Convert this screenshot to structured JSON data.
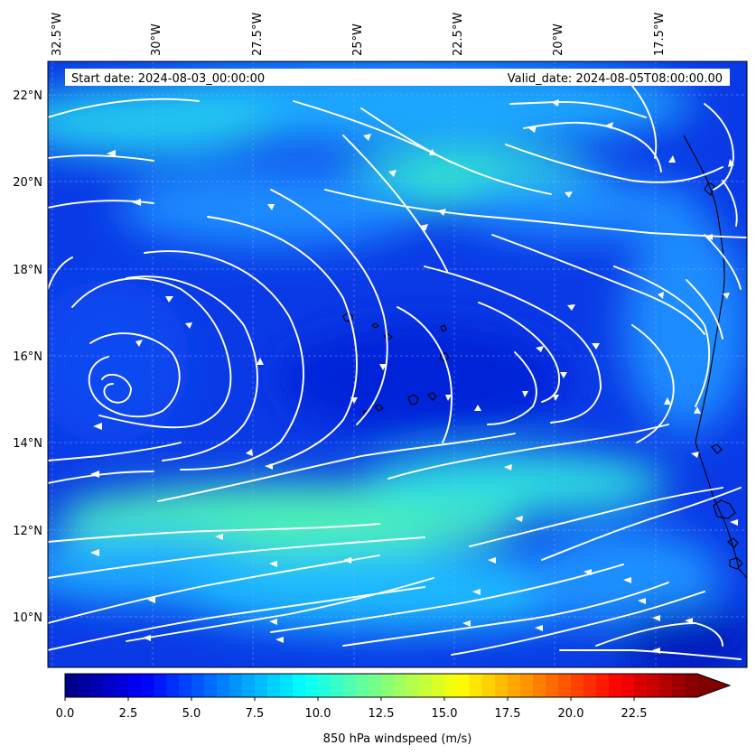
{
  "header": {
    "start_date": "Start date: 2024-08-03_00:00:00",
    "valid_date": "Valid_date: 2024-08-05T08:00:00.00"
  },
  "map": {
    "lon_labels": [
      "32.5°W",
      "30°W",
      "27.5°W",
      "25°W",
      "22.5°W",
      "20°W",
      "17.5°W"
    ],
    "lat_labels": [
      "22°N",
      "20°N",
      "18°N",
      "16°N",
      "14°N",
      "12°N",
      "10°N"
    ],
    "extent": {
      "lon_min": -32.6,
      "lon_max": -15.2,
      "lat_min": 8.9,
      "lat_max": 22.8
    },
    "field": "850 hPa windspeed",
    "colormap": "jet",
    "streamline_color": "#ffffff",
    "coastline_color": "#000000"
  },
  "colorbar": {
    "label": "850 hPa windspeed (m/s)",
    "ticks": [
      "0.0",
      "2.5",
      "5.0",
      "7.5",
      "10.0",
      "12.5",
      "15.0",
      "17.5",
      "20.0",
      "22.5"
    ],
    "min": 0,
    "max": 25,
    "extend": "max",
    "orientation": "horizontal"
  }
}
